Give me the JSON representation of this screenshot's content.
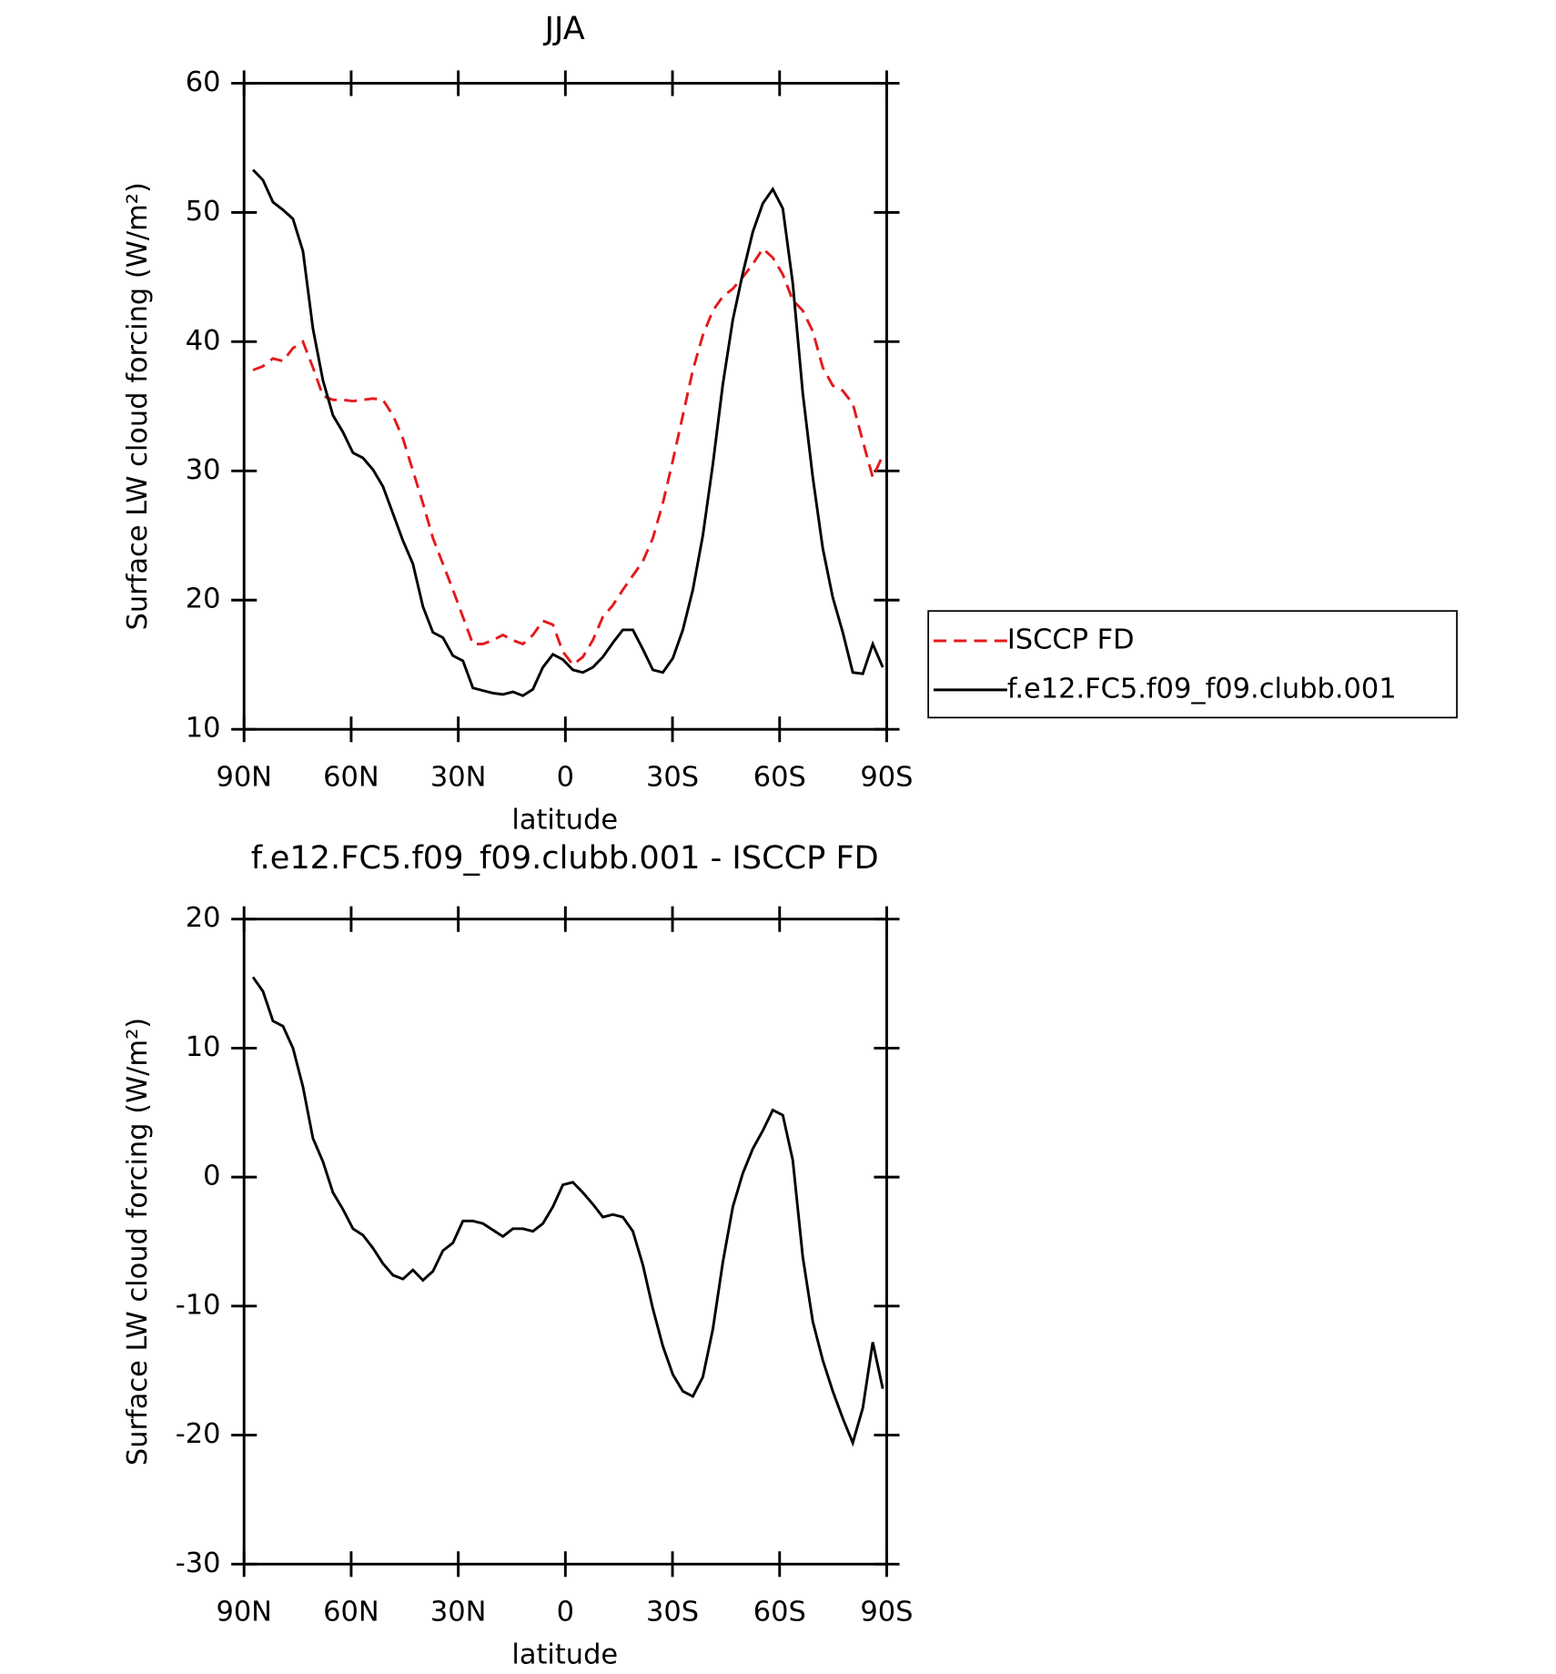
{
  "chart_data": [
    {
      "type": "line",
      "title": "JJA",
      "xlabel": "latitude",
      "ylabel": "Surface LW cloud forcing (W/m²)",
      "x": [
        87.5,
        84.7,
        81.9,
        79.1,
        76.3,
        73.5,
        70.7,
        67.9,
        65.1,
        62.3,
        59.5,
        56.7,
        53.9,
        51.1,
        48.3,
        45.5,
        42.7,
        39.9,
        37.1,
        34.3,
        31.5,
        28.7,
        25.9,
        23.1,
        20.3,
        17.5,
        14.7,
        11.9,
        9.1,
        6.3,
        3.5,
        0.7,
        -2.1,
        -4.9,
        -7.7,
        -10.5,
        -13.3,
        -16.1,
        -18.9,
        -21.7,
        -24.5,
        -27.3,
        -30.1,
        -32.9,
        -35.7,
        -38.5,
        -41.3,
        -44.1,
        -46.9,
        -49.7,
        -52.5,
        -55.3,
        -58.1,
        -60.9,
        -63.7,
        -66.5,
        -69.3,
        -72.1,
        -74.9,
        -77.7,
        -80.5,
        -83.3,
        -86.1,
        -88.9
      ],
      "series": [
        {
          "name": "ISCCP FD",
          "color": "#e41a1c",
          "dash": true,
          "values": [
            37.8,
            38.1,
            38.7,
            38.5,
            39.5,
            40,
            38,
            35.8,
            35.5,
            35.5,
            35.4,
            35.5,
            35.6,
            35.5,
            34.3,
            32.5,
            30,
            27.5,
            24.8,
            22.8,
            20.8,
            18.7,
            16.6,
            16.6,
            16.9,
            17.3,
            16.9,
            16.6,
            17.3,
            18.4,
            18.1,
            16,
            15,
            15.6,
            16.9,
            18.7,
            19.6,
            20.8,
            21.9,
            23,
            24.8,
            27.5,
            30.8,
            34.3,
            37.8,
            40.5,
            42.4,
            43.5,
            44.1,
            45,
            46,
            47.2,
            46.5,
            45.2,
            43.2,
            42.4,
            40.8,
            38,
            36.6,
            36.2,
            35.2,
            32.3,
            29.5,
            31.2
          ]
        },
        {
          "name": "f.e12.FC5.f09_f09.clubb.001",
          "color": "#000000",
          "dash": false,
          "values": [
            53.3,
            52.5,
            50.8,
            50.2,
            49.5,
            47,
            41,
            37,
            34.3,
            33,
            31.4,
            31,
            30.1,
            28.8,
            26.7,
            24.6,
            22.8,
            19.5,
            17.5,
            17.1,
            15.7,
            15.3,
            13.2,
            13,
            12.8,
            12.7,
            12.9,
            12.6,
            13.1,
            14.8,
            15.8,
            15.4,
            14.6,
            14.4,
            14.8,
            15.6,
            16.7,
            17.7,
            17.7,
            16.2,
            14.6,
            14.4,
            15.5,
            17.7,
            20.8,
            25,
            30.5,
            36.7,
            41.7,
            45.3,
            48.5,
            50.7,
            51.8,
            50.3,
            44.5,
            36,
            29.5,
            24,
            20.2,
            17.5,
            14.4,
            14.3,
            16.6,
            14.8
          ]
        }
      ],
      "xlim": [
        90,
        -90
      ],
      "xticks": [
        {
          "value": 90,
          "label": "90N"
        },
        {
          "value": 60,
          "label": "60N"
        },
        {
          "value": 30,
          "label": "30N"
        },
        0,
        {
          "value": -30,
          "label": "30S"
        },
        {
          "value": -60,
          "label": "60S"
        },
        {
          "value": -90,
          "label": "90S"
        }
      ],
      "ylim": [
        10,
        60
      ],
      "yticks": [
        10,
        20,
        30,
        40,
        50,
        60
      ],
      "legend": "right"
    },
    {
      "type": "line",
      "title": "f.e12.FC5.f09_f09.clubb.001 - ISCCP FD",
      "xlabel": "latitude",
      "ylabel": "Surface LW cloud forcing (W/m²)",
      "x": [
        87.5,
        84.7,
        81.9,
        79.1,
        76.3,
        73.5,
        70.7,
        67.9,
        65.1,
        62.3,
        59.5,
        56.7,
        53.9,
        51.1,
        48.3,
        45.5,
        42.7,
        39.9,
        37.1,
        34.3,
        31.5,
        28.7,
        25.9,
        23.1,
        20.3,
        17.5,
        14.7,
        11.9,
        9.1,
        6.3,
        3.5,
        0.7,
        -2.1,
        -4.9,
        -7.7,
        -10.5,
        -13.3,
        -16.1,
        -18.9,
        -21.7,
        -24.5,
        -27.3,
        -30.1,
        -32.9,
        -35.7,
        -38.5,
        -41.3,
        -44.1,
        -46.9,
        -49.7,
        -52.5,
        -55.3,
        -58.1,
        -60.9,
        -63.7,
        -66.5,
        -69.3,
        -72.1,
        -74.9,
        -77.7,
        -80.5,
        -83.3,
        -86.1,
        -88.9
      ],
      "series": [
        {
          "color": "#000000",
          "dash": false,
          "values": [
            15.5,
            14.4,
            12.1,
            11.7,
            10,
            7,
            3,
            1.2,
            -1.2,
            -2.5,
            -4,
            -4.5,
            -5.5,
            -6.7,
            -7.6,
            -7.9,
            -7.2,
            -8,
            -7.3,
            -5.7,
            -5.1,
            -3.4,
            -3.4,
            -3.6,
            -4.1,
            -4.6,
            -4,
            -4,
            -4.2,
            -3.6,
            -2.3,
            -0.6,
            -0.4,
            -1.2,
            -2.1,
            -3.1,
            -2.9,
            -3.1,
            -4.2,
            -6.8,
            -10.2,
            -13.1,
            -15.3,
            -16.6,
            -17,
            -15.5,
            -11.8,
            -6.6,
            -2.3,
            0.3,
            2.2,
            3.6,
            5.2,
            4.8,
            1.3,
            -6.2,
            -11.2,
            -14.2,
            -16.6,
            -18.7,
            -20.6,
            -17.9,
            -12.8,
            -16.4
          ]
        }
      ],
      "xlim": [
        90,
        -90
      ],
      "xticks": [
        {
          "value": 90,
          "label": "90N"
        },
        {
          "value": 60,
          "label": "60N"
        },
        {
          "value": 30,
          "label": "30N"
        },
        0,
        {
          "value": -30,
          "label": "30S"
        },
        {
          "value": -60,
          "label": "60S"
        },
        {
          "value": -90,
          "label": "90S"
        }
      ],
      "ylim": [
        -30,
        20
      ],
      "yticks": [
        -30,
        -20,
        -10,
        0,
        10,
        20
      ]
    }
  ]
}
